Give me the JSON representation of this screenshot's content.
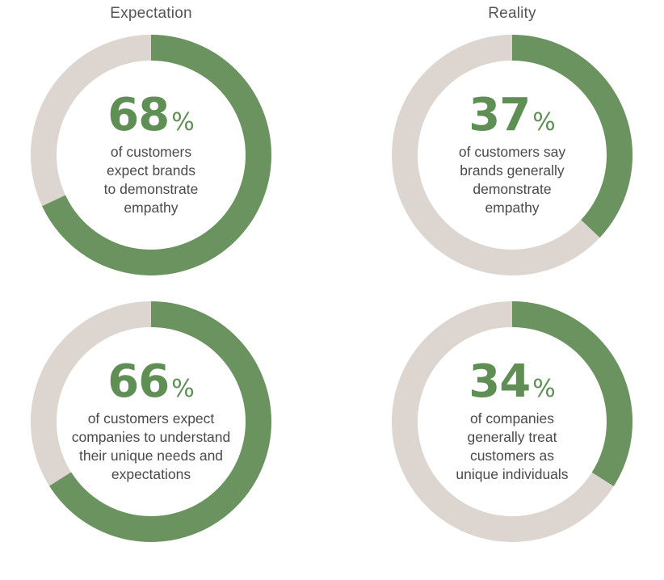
{
  "headers": {
    "left": "Expectation",
    "right": "Reality"
  },
  "colors": {
    "filled": "#6b935f",
    "track": "#ddd5cf",
    "number": "#5f8f55",
    "text": "#4a4a4a"
  },
  "chart_data": [
    {
      "type": "pie",
      "column": "Expectation",
      "value": 68,
      "unit": "%",
      "number_label": "68",
      "caption_lines": [
        "of customers",
        "expect brands",
        "to demonstrate",
        "empathy"
      ]
    },
    {
      "type": "pie",
      "column": "Reality",
      "value": 37,
      "unit": "%",
      "number_label": "37",
      "caption_lines": [
        "of customers say",
        "brands generally",
        "demonstrate",
        "empathy"
      ]
    },
    {
      "type": "pie",
      "column": "Expectation",
      "value": 66,
      "unit": "%",
      "number_label": "66",
      "caption_lines": [
        "of customers expect",
        "companies to understand",
        "their unique needs and",
        "expectations"
      ]
    },
    {
      "type": "pie",
      "column": "Reality",
      "value": 34,
      "unit": "%",
      "number_label": "34",
      "caption_lines": [
        "of companies",
        "generally treat",
        "customers as",
        "unique individuals"
      ]
    }
  ]
}
